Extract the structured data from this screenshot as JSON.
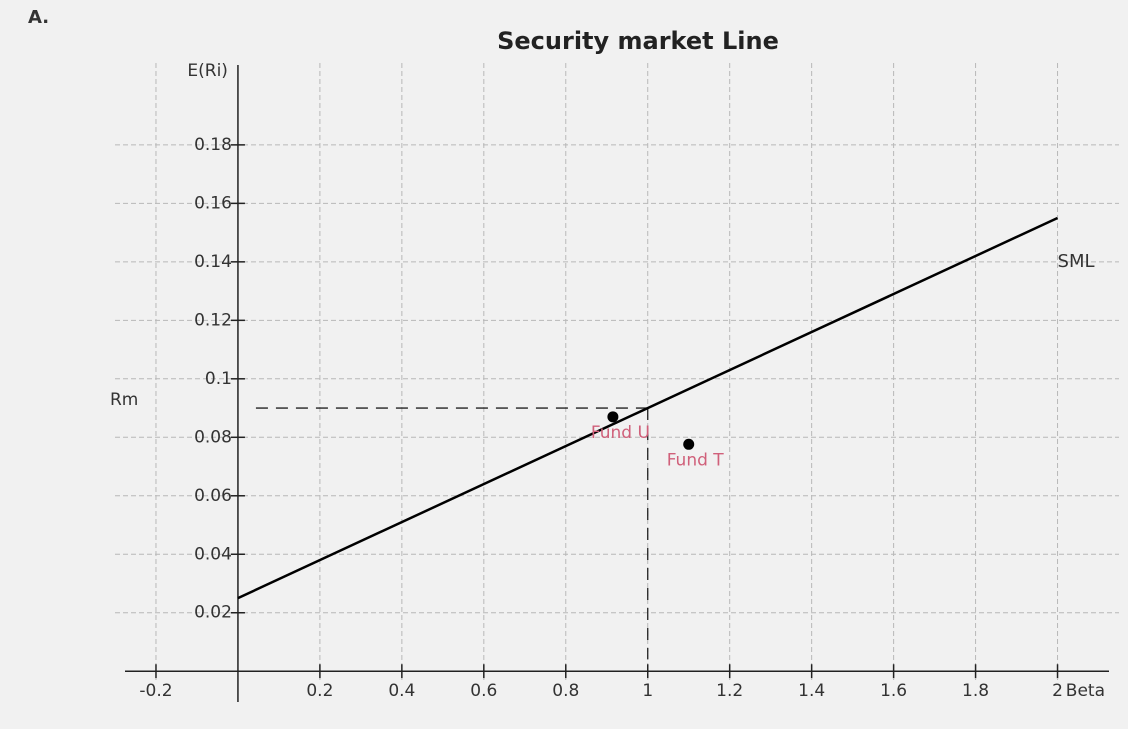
{
  "chart_data": {
    "type": "line",
    "panel_label": "A.",
    "title": "Security market Line",
    "xlabel": "Beta",
    "ylabel": "E(Ri)",
    "xlim": [
      -0.3,
      2.15
    ],
    "ylim": [
      -0.003,
      0.208
    ],
    "xticks": [
      -0.2,
      0.2,
      0.4,
      0.6,
      0.8,
      1,
      1.2,
      1.4,
      1.6,
      1.8,
      2
    ],
    "yticks": [
      0.02,
      0.04,
      0.06,
      0.08,
      0.1,
      0.12,
      0.14,
      0.16,
      0.18
    ],
    "grid": true,
    "series": [
      {
        "name": "SML",
        "color": "#000000",
        "x": [
          0,
          2
        ],
        "values": [
          0.025,
          0.155
        ]
      }
    ],
    "points": [
      {
        "name": "Fund U",
        "color": "#000000",
        "label_color": "#d0607a",
        "x": 0.915,
        "y": 0.087
      },
      {
        "name": "Fund T",
        "color": "#000000",
        "label_color": "#d0607a",
        "x": 1.1,
        "y": 0.0776
      }
    ],
    "reference": {
      "label": "Rm",
      "x": 1,
      "y": 0.09
    }
  }
}
